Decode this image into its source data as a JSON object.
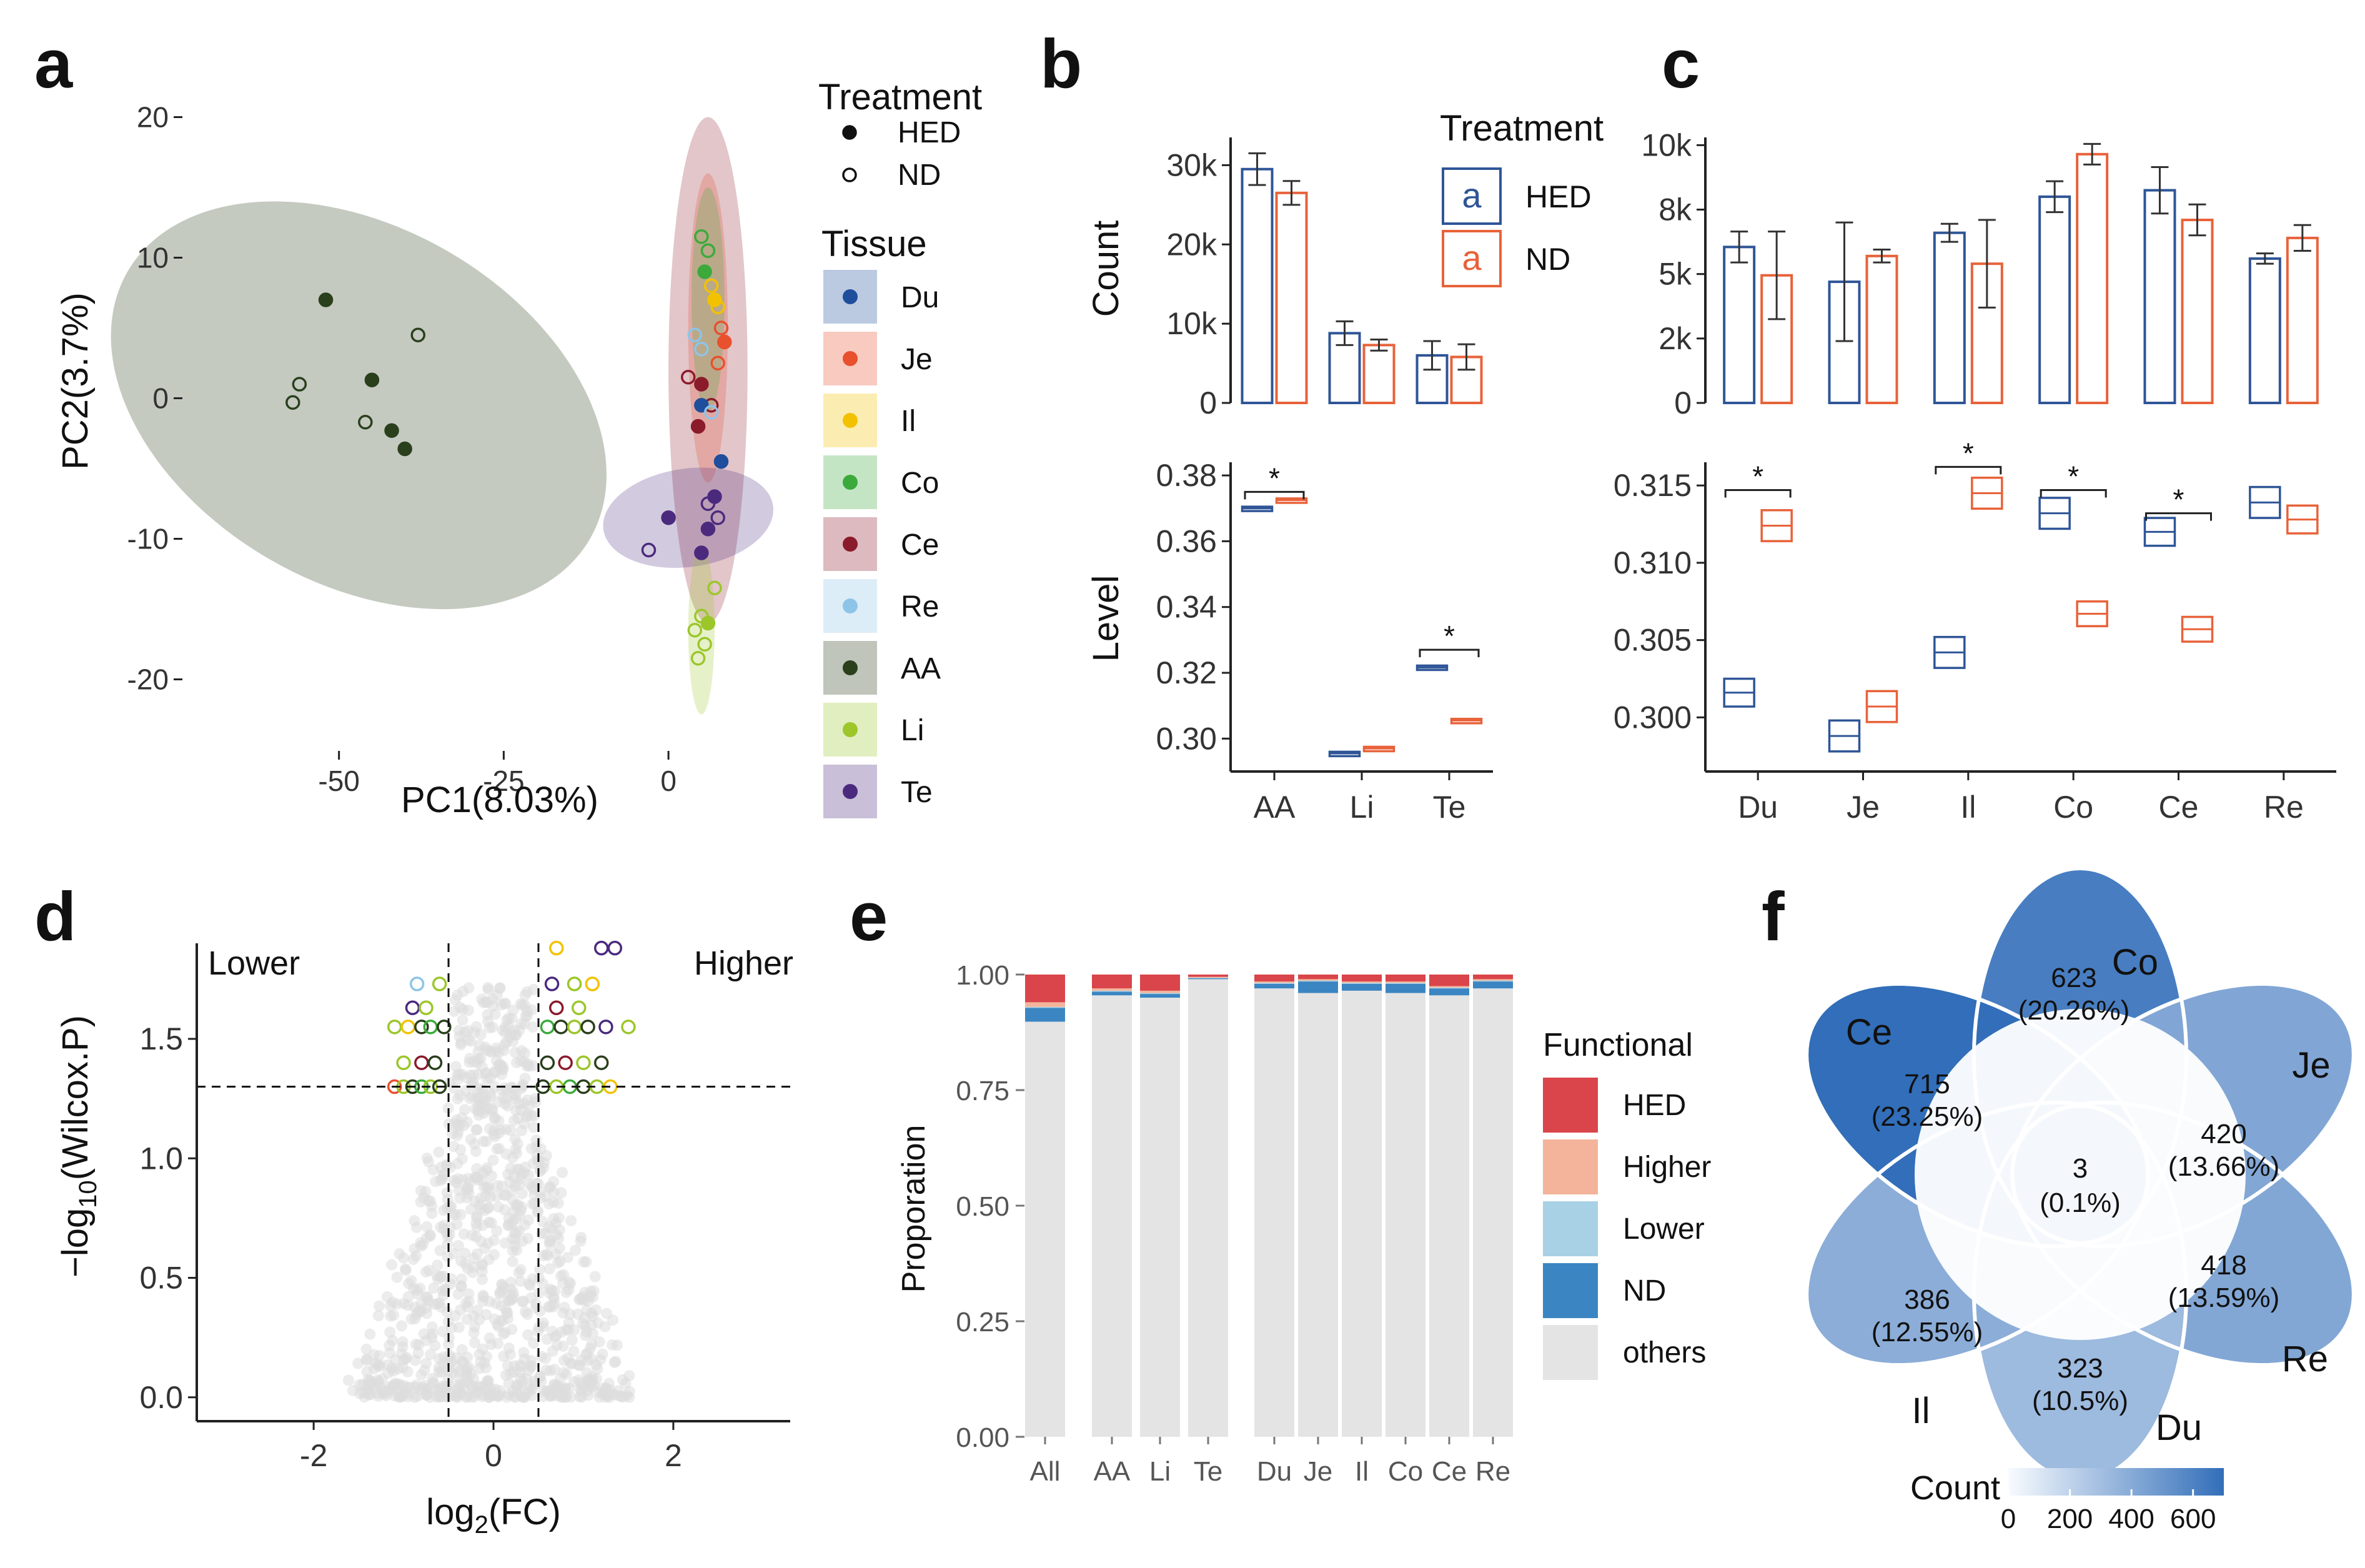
{
  "colors": {
    "HED": "#2F5597",
    "ND": "#E8623A",
    "Du": "#1F4E9C",
    "Je": "#E8502E",
    "Il": "#F2C200",
    "Co": "#3BAA3B",
    "Ce": "#8B1A2B",
    "Re": "#8EC4E8",
    "AA": "#2A3F1C",
    "Li": "#9CC62A",
    "Te": "#4B2A7E",
    "grey": "#DDDDDD",
    "fHED": "#D9454A",
    "fHigher": "#F4B49B",
    "fLower": "#A8D1E6",
    "fND": "#3B86C2",
    "fOthers": "#E4E4E4"
  },
  "panel_labels": {
    "a": "a",
    "b": "b",
    "c": "c",
    "d": "d",
    "e": "e",
    "f": "f"
  },
  "chart_data": [
    {
      "id": "a",
      "type": "scatter",
      "xlabel": "PC1(8.03%)",
      "ylabel": "PC2(3.7%)",
      "xticks": [
        -50,
        -25,
        0
      ],
      "yticks": [
        20,
        10,
        0,
        -10,
        -20
      ],
      "xlim": [
        -73,
        18
      ],
      "ylim": [
        -25,
        23
      ],
      "legend_treatment_title": "Treatment",
      "legend_treatment": [
        "HED",
        "ND"
      ],
      "legend_tissue_title": "Tissue",
      "legend_tissue": [
        "Du",
        "Je",
        "Il",
        "Co",
        "Ce",
        "Re",
        "AA",
        "Li",
        "Te"
      ],
      "ellipses": [
        {
          "tissue": "AA",
          "cx": -47,
          "cy": -0.5,
          "rx": 27,
          "ry": 19,
          "angle": -60
        },
        {
          "tissue": "Ce",
          "cx": 6,
          "cy": 2,
          "rx": 6,
          "ry": 18,
          "angle": 0
        },
        {
          "tissue": "Je",
          "cx": 6,
          "cy": 5,
          "rx": 3,
          "ry": 11,
          "angle": 0
        },
        {
          "tissue": "Co",
          "cx": 6,
          "cy": 7,
          "rx": 2.5,
          "ry": 8,
          "angle": 0
        },
        {
          "tissue": "Te",
          "cx": 3,
          "cy": -8.5,
          "rx": 13,
          "ry": 3.5,
          "angle": -8
        },
        {
          "tissue": "Li",
          "cx": 5,
          "cy": -16.5,
          "rx": 2,
          "ry": 6,
          "angle": 0
        }
      ],
      "points": [
        {
          "tissue": "AA",
          "treatment": "HED",
          "x": -52,
          "y": 7
        },
        {
          "tissue": "AA",
          "treatment": "HED",
          "x": -45,
          "y": 1.3
        },
        {
          "tissue": "AA",
          "treatment": "HED",
          "x": -42,
          "y": -2.3
        },
        {
          "tissue": "AA",
          "treatment": "HED",
          "x": -40,
          "y": -3.6
        },
        {
          "tissue": "AA",
          "treatment": "ND",
          "x": -38,
          "y": 4.5
        },
        {
          "tissue": "AA",
          "treatment": "ND",
          "x": -56,
          "y": 1
        },
        {
          "tissue": "AA",
          "treatment": "ND",
          "x": -57,
          "y": -0.3
        },
        {
          "tissue": "AA",
          "treatment": "ND",
          "x": -46,
          "y": -1.7
        },
        {
          "tissue": "Co",
          "treatment": "ND",
          "x": 5,
          "y": 11.5
        },
        {
          "tissue": "Co",
          "treatment": "ND",
          "x": 6,
          "y": 10.5
        },
        {
          "tissue": "Co",
          "treatment": "HED",
          "x": 5.5,
          "y": 9
        },
        {
          "tissue": "Il",
          "treatment": "ND",
          "x": 6.5,
          "y": 8
        },
        {
          "tissue": "Il",
          "treatment": "HED",
          "x": 7,
          "y": 7
        },
        {
          "tissue": "Il",
          "treatment": "ND",
          "x": 7.5,
          "y": 6.5
        },
        {
          "tissue": "Je",
          "treatment": "ND",
          "x": 8,
          "y": 5
        },
        {
          "tissue": "Je",
          "treatment": "HED",
          "x": 8.5,
          "y": 4
        },
        {
          "tissue": "Je",
          "treatment": "ND",
          "x": 7.5,
          "y": 2.5
        },
        {
          "tissue": "Re",
          "treatment": "ND",
          "x": 4,
          "y": 4.5
        },
        {
          "tissue": "Re",
          "treatment": "ND",
          "x": 5,
          "y": 3.5
        },
        {
          "tissue": "Ce",
          "treatment": "ND",
          "x": 3,
          "y": 1.5
        },
        {
          "tissue": "Ce",
          "treatment": "HED",
          "x": 5,
          "y": 1
        },
        {
          "tissue": "Ce",
          "treatment": "ND",
          "x": 6.5,
          "y": -0.5
        },
        {
          "tissue": "Ce",
          "treatment": "HED",
          "x": 4.5,
          "y": -2
        },
        {
          "tissue": "Du",
          "treatment": "HED",
          "x": 5,
          "y": -0.5
        },
        {
          "tissue": "Du",
          "treatment": "HED",
          "x": 8,
          "y": -4.5
        },
        {
          "tissue": "Re",
          "treatment": "ND",
          "x": 6.5,
          "y": -1
        },
        {
          "tissue": "Te",
          "treatment": "HED",
          "x": 7,
          "y": -7
        },
        {
          "tissue": "Te",
          "treatment": "ND",
          "x": 6,
          "y": -7.5
        },
        {
          "tissue": "Te",
          "treatment": "ND",
          "x": 7.5,
          "y": -8.5
        },
        {
          "tissue": "Te",
          "treatment": "HED",
          "x": 6,
          "y": -9.3
        },
        {
          "tissue": "Te",
          "treatment": "HED",
          "x": 0,
          "y": -8.5
        },
        {
          "tissue": "Te",
          "treatment": "ND",
          "x": -3,
          "y": -10.8
        },
        {
          "tissue": "Te",
          "treatment": "HED",
          "x": 5,
          "y": -11
        },
        {
          "tissue": "Li",
          "treatment": "ND",
          "x": 7,
          "y": -13.5
        },
        {
          "tissue": "Li",
          "treatment": "ND",
          "x": 5,
          "y": -15.5
        },
        {
          "tissue": "Li",
          "treatment": "HED",
          "x": 6,
          "y": -16
        },
        {
          "tissue": "Li",
          "treatment": "ND",
          "x": 4,
          "y": -16.5
        },
        {
          "tissue": "Li",
          "treatment": "ND",
          "x": 5.5,
          "y": -17.5
        },
        {
          "tissue": "Li",
          "treatment": "ND",
          "x": 4.5,
          "y": -18.5
        }
      ]
    },
    {
      "id": "b-count",
      "type": "bar",
      "ylabel": "Count",
      "categories": [
        "AA",
        "Li",
        "Te"
      ],
      "yticks": [
        0,
        10000,
        20000,
        30000
      ],
      "ytick_labels": [
        "0",
        "10k",
        "20k",
        "30k"
      ],
      "ylim": [
        0,
        33500
      ],
      "legend_title": "Treatment",
      "legend_glyph": "a",
      "legend": [
        "HED",
        "ND"
      ],
      "series": [
        {
          "name": "HED",
          "values": [
            29500,
            8800,
            6000
          ],
          "errors": [
            2000,
            1500,
            1800
          ]
        },
        {
          "name": "ND",
          "values": [
            26500,
            7300,
            5800
          ],
          "errors": [
            1500,
            700,
            1600
          ]
        }
      ]
    },
    {
      "id": "b-level",
      "type": "box",
      "ylabel": "Level",
      "categories": [
        "AA",
        "Li",
        "Te"
      ],
      "yticks": [
        0.3,
        0.32,
        0.34,
        0.36,
        0.38
      ],
      "ytick_labels": [
        "0.30",
        "0.32",
        "0.34",
        "0.36",
        "0.38"
      ],
      "ylim": [
        0.29,
        0.384
      ],
      "series": [
        {
          "name": "HED",
          "lo": [
            0.3695,
            0.295,
            0.321
          ],
          "mid": [
            0.37,
            0.2955,
            0.3216
          ],
          "hi": [
            0.3705,
            0.296,
            0.3222
          ]
        },
        {
          "name": "ND",
          "lo": [
            0.372,
            0.2965,
            0.305
          ],
          "mid": [
            0.3725,
            0.297,
            0.3055
          ],
          "hi": [
            0.373,
            0.2975,
            0.306
          ]
        }
      ],
      "signif": [
        {
          "category": "AA",
          "label": "*",
          "y": 0.375
        },
        {
          "category": "Te",
          "label": "*",
          "y": 0.327
        }
      ]
    },
    {
      "id": "c-count",
      "type": "bar",
      "categories": [
        "Du",
        "Je",
        "Il",
        "Co",
        "Ce",
        "Re"
      ],
      "yticks": [
        0,
        2500,
        5000,
        7500,
        10000
      ],
      "ytick_labels": [
        "0",
        "2k",
        "5k",
        "8k",
        "10k"
      ],
      "ylim": [
        0,
        10300
      ],
      "series": [
        {
          "name": "HED",
          "values": [
            6050,
            4700,
            6600,
            8000,
            8250,
            5600
          ],
          "errors": [
            600,
            2300,
            350,
            600,
            900,
            200
          ]
        },
        {
          "name": "ND",
          "values": [
            4950,
            5700,
            5400,
            9650,
            7100,
            6400
          ],
          "errors": [
            1700,
            250,
            1700,
            400,
            600,
            500
          ]
        }
      ]
    },
    {
      "id": "c-level",
      "type": "box",
      "categories": [
        "Du",
        "Je",
        "Il",
        "Co",
        "Ce",
        "Re"
      ],
      "yticks": [
        0.3,
        0.305,
        0.31,
        0.315
      ],
      "ytick_labels": [
        "0.300",
        "0.305",
        "0.310",
        "0.315"
      ],
      "ylim": [
        0.2965,
        0.3165
      ],
      "series": [
        {
          "name": "HED",
          "lo": [
            0.3007,
            0.2978,
            0.3032,
            0.3122,
            0.3111,
            0.3129
          ],
          "mid": [
            0.3016,
            0.2988,
            0.3042,
            0.3132,
            0.312,
            0.3139
          ],
          "hi": [
            0.3025,
            0.2998,
            0.3052,
            0.3142,
            0.3129,
            0.3149
          ]
        },
        {
          "name": "ND",
          "lo": [
            0.3114,
            0.2997,
            0.3135,
            0.3059,
            0.3049,
            0.3119
          ],
          "mid": [
            0.3124,
            0.3007,
            0.3145,
            0.3067,
            0.3057,
            0.3128
          ],
          "hi": [
            0.3134,
            0.3017,
            0.3155,
            0.3075,
            0.3065,
            0.3137
          ]
        }
      ],
      "signif": [
        {
          "category": "Du",
          "label": "*",
          "y": 0.3147
        },
        {
          "category": "Il",
          "label": "*",
          "y": 0.3162
        },
        {
          "category": "Co",
          "label": "*",
          "y": 0.3147
        },
        {
          "category": "Ce",
          "label": "*",
          "y": 0.3132
        }
      ]
    },
    {
      "id": "d",
      "type": "scatter",
      "xlabel_main": "log",
      "xlabel_sub": "2",
      "xlabel_tail": "(FC)",
      "ylabel_main": "−log",
      "ylabel_sub": "10",
      "ylabel_tail": "(Wilcox.P)",
      "xticks": [
        -2,
        0,
        2
      ],
      "yticks": [
        0.0,
        0.5,
        1.0,
        1.5
      ],
      "ytick_labels": [
        "0.0",
        "0.5",
        "1.0",
        "1.5"
      ],
      "xlim": [
        -3.3,
        3.3
      ],
      "ylim": [
        -0.1,
        1.9
      ],
      "vlines": [
        -0.5,
        0.5
      ],
      "hline": 1.3,
      "label_lower": "Lower",
      "label_higher": "Higher",
      "highlight": [
        {
          "x": -1.1,
          "y": 1.3,
          "tissue": "Je"
        },
        {
          "x": -1.0,
          "y": 1.3,
          "tissue": "Li"
        },
        {
          "x": -0.9,
          "y": 1.3,
          "tissue": "AA"
        },
        {
          "x": -0.8,
          "y": 1.3,
          "tissue": "Co"
        },
        {
          "x": -0.7,
          "y": 1.3,
          "tissue": "Li"
        },
        {
          "x": -0.6,
          "y": 1.3,
          "tissue": "AA"
        },
        {
          "x": -1.0,
          "y": 1.4,
          "tissue": "Li"
        },
        {
          "x": -0.8,
          "y": 1.4,
          "tissue": "Ce"
        },
        {
          "x": -0.65,
          "y": 1.4,
          "tissue": "AA"
        },
        {
          "x": -1.1,
          "y": 1.55,
          "tissue": "Li"
        },
        {
          "x": -0.95,
          "y": 1.55,
          "tissue": "Il"
        },
        {
          "x": -0.8,
          "y": 1.55,
          "tissue": "AA"
        },
        {
          "x": -0.7,
          "y": 1.55,
          "tissue": "Co"
        },
        {
          "x": -0.55,
          "y": 1.55,
          "tissue": "AA"
        },
        {
          "x": -0.9,
          "y": 1.63,
          "tissue": "Te"
        },
        {
          "x": -0.75,
          "y": 1.63,
          "tissue": "Li"
        },
        {
          "x": -0.85,
          "y": 1.73,
          "tissue": "Re"
        },
        {
          "x": -0.6,
          "y": 1.73,
          "tissue": "Li"
        },
        {
          "x": 0.55,
          "y": 1.3,
          "tissue": "AA"
        },
        {
          "x": 0.7,
          "y": 1.3,
          "tissue": "Li"
        },
        {
          "x": 0.85,
          "y": 1.3,
          "tissue": "Co"
        },
        {
          "x": 1.0,
          "y": 1.3,
          "tissue": "AA"
        },
        {
          "x": 1.15,
          "y": 1.3,
          "tissue": "Li"
        },
        {
          "x": 1.3,
          "y": 1.3,
          "tissue": "Il"
        },
        {
          "x": 0.6,
          "y": 1.4,
          "tissue": "AA"
        },
        {
          "x": 0.8,
          "y": 1.4,
          "tissue": "Ce"
        },
        {
          "x": 1.0,
          "y": 1.4,
          "tissue": "Li"
        },
        {
          "x": 1.2,
          "y": 1.4,
          "tissue": "AA"
        },
        {
          "x": 0.6,
          "y": 1.55,
          "tissue": "Co"
        },
        {
          "x": 0.75,
          "y": 1.55,
          "tissue": "AA"
        },
        {
          "x": 0.9,
          "y": 1.55,
          "tissue": "Li"
        },
        {
          "x": 1.05,
          "y": 1.55,
          "tissue": "AA"
        },
        {
          "x": 1.25,
          "y": 1.55,
          "tissue": "Te"
        },
        {
          "x": 1.5,
          "y": 1.55,
          "tissue": "Li"
        },
        {
          "x": 0.7,
          "y": 1.63,
          "tissue": "Ce"
        },
        {
          "x": 0.95,
          "y": 1.63,
          "tissue": "Li"
        },
        {
          "x": 0.65,
          "y": 1.73,
          "tissue": "Te"
        },
        {
          "x": 0.9,
          "y": 1.73,
          "tissue": "Li"
        },
        {
          "x": 1.1,
          "y": 1.73,
          "tissue": "Il"
        },
        {
          "x": 0.7,
          "y": 1.88,
          "tissue": "Il"
        },
        {
          "x": 1.2,
          "y": 1.88,
          "tissue": "Te"
        },
        {
          "x": 1.35,
          "y": 1.88,
          "tissue": "Te"
        }
      ]
    },
    {
      "id": "e",
      "type": "bar",
      "ylabel": "Proporation",
      "yticks": [
        0,
        0.25,
        0.5,
        0.75,
        1
      ],
      "ytick_labels": [
        "0.00",
        "0.25",
        "0.50",
        "0.75",
        "1.00"
      ],
      "categories": [
        "All",
        "AA",
        "Li",
        "Te",
        "Du",
        "Je",
        "Il",
        "Co",
        "Ce",
        "Re"
      ],
      "legend_title": "Functional",
      "legend": [
        "HED",
        "Higher",
        "Lower",
        "ND",
        "others"
      ],
      "stacks": [
        {
          "category": "All",
          "others": 0.898,
          "ND": 0.03,
          "Lower": 0.002,
          "Higher": 0.01,
          "HED": 0.06
        },
        {
          "category": "AA",
          "others": 0.955,
          "ND": 0.008,
          "Lower": 0.002,
          "Higher": 0.005,
          "HED": 0.03
        },
        {
          "category": "Li",
          "others": 0.95,
          "ND": 0.008,
          "Lower": 0.002,
          "Higher": 0.005,
          "HED": 0.035
        },
        {
          "category": "Te",
          "others": 0.99,
          "ND": 0.002,
          "Lower": 0.001,
          "Higher": 0.002,
          "HED": 0.005
        },
        {
          "category": "Du",
          "others": 0.97,
          "ND": 0.01,
          "Lower": 0.002,
          "Higher": 0.003,
          "HED": 0.015
        },
        {
          "category": "Je",
          "others": 0.96,
          "ND": 0.025,
          "Lower": 0.002,
          "Higher": 0.003,
          "HED": 0.01
        },
        {
          "category": "Il",
          "others": 0.965,
          "ND": 0.015,
          "Lower": 0.002,
          "Higher": 0.003,
          "HED": 0.015
        },
        {
          "category": "Co",
          "others": 0.96,
          "ND": 0.02,
          "Lower": 0.002,
          "Higher": 0.003,
          "HED": 0.015
        },
        {
          "category": "Ce",
          "others": 0.955,
          "ND": 0.015,
          "Lower": 0.002,
          "Higher": 0.003,
          "HED": 0.025
        },
        {
          "category": "Re",
          "others": 0.97,
          "ND": 0.015,
          "Lower": 0.002,
          "Higher": 0.003,
          "HED": 0.01
        }
      ]
    },
    {
      "id": "f",
      "type": "flower",
      "center": {
        "count": "3",
        "percent": "(0.1%)"
      },
      "sets": [
        {
          "name": "Co",
          "count": 623,
          "count_label": "623",
          "percent": "(20.26%)"
        },
        {
          "name": "Je",
          "count": 420,
          "count_label": "420",
          "percent": "(13.66%)"
        },
        {
          "name": "Re",
          "count": 418,
          "count_label": "418",
          "percent": "(13.59%)"
        },
        {
          "name": "Du",
          "count": 323,
          "count_label": "323",
          "percent": "(10.5%)"
        },
        {
          "name": "Il",
          "count": 386,
          "count_label": "386",
          "percent": "(12.55%)"
        },
        {
          "name": "Ce",
          "count": 715,
          "count_label": "715",
          "percent": "(23.25%)"
        }
      ],
      "legend_title": "Count",
      "legend_ticks": [
        "0",
        "200",
        "400",
        "600"
      ],
      "legend_max": 700
    }
  ]
}
